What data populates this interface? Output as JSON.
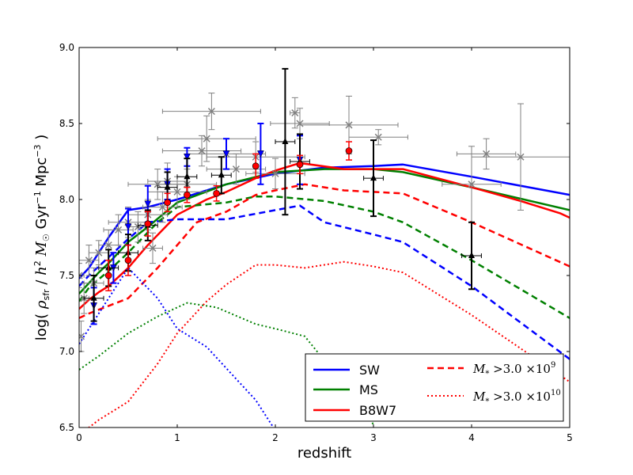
{
  "chart_data": {
    "type": "line",
    "title": "",
    "xlabel": "redshift",
    "ylabel_parts": [
      "log( ",
      "ρ",
      "sfr",
      " / ",
      "h",
      "2",
      " ",
      "M",
      "☉",
      " Gyr",
      "−1",
      " Mpc",
      "−3",
      " )"
    ],
    "xlim": [
      0,
      5
    ],
    "ylim": [
      6.5,
      9.0
    ],
    "xticks": [
      0,
      1,
      2,
      3,
      4,
      5
    ],
    "xtick_labels": [
      "0",
      "1",
      "2",
      "3",
      "4",
      "5"
    ],
    "yticks": [
      6.5,
      7.0,
      7.5,
      8.0,
      8.5,
      9.0
    ],
    "ytick_labels": [
      "6.5",
      "7.0",
      "7.5",
      "8.0",
      "8.5",
      "9.0"
    ],
    "grid": false,
    "legend_position": "lower-right",
    "colors": {
      "SW": "#0000ff",
      "MS": "#008000",
      "B8W7": "#ff0000",
      "obs_gray": "#808080",
      "obs_black": "#000000",
      "obs_blue": "#0000ff",
      "obs_red": "#ff0000"
    },
    "series": [
      {
        "name": "SW",
        "style": "solid",
        "color": "#0000ff",
        "x": [
          0,
          0.1,
          0.2,
          0.3,
          0.5,
          0.7,
          1.0,
          1.5,
          2.0,
          2.5,
          3.0,
          3.3,
          4.0,
          5.0
        ],
        "y": [
          7.48,
          7.55,
          7.65,
          7.75,
          7.93,
          7.95,
          8.0,
          8.1,
          8.17,
          8.21,
          8.22,
          8.23,
          8.15,
          8.03
        ]
      },
      {
        "name": "MS",
        "style": "solid",
        "color": "#008000",
        "x": [
          0,
          0.1,
          0.2,
          0.3,
          0.5,
          0.7,
          1.0,
          1.5,
          2.0,
          2.5,
          3.0,
          3.3,
          4.0,
          5.0
        ],
        "y": [
          7.38,
          7.45,
          7.52,
          7.58,
          7.72,
          7.82,
          7.98,
          8.1,
          8.18,
          8.2,
          8.2,
          8.18,
          8.08,
          7.93
        ]
      },
      {
        "name": "B8W7",
        "style": "solid",
        "color": "#ff0000",
        "x": [
          0,
          0.1,
          0.2,
          0.3,
          0.5,
          0.7,
          1.0,
          1.3,
          1.5,
          1.8,
          2.0,
          2.25,
          2.7,
          3.0,
          3.3,
          4.0,
          4.5,
          4.9,
          5.0
        ],
        "y": [
          7.28,
          7.34,
          7.39,
          7.43,
          7.55,
          7.7,
          7.9,
          8.0,
          8.05,
          8.14,
          8.19,
          8.24,
          8.2,
          8.2,
          8.2,
          8.08,
          7.99,
          7.91,
          7.88
        ]
      },
      {
        "name": "SW M*>3e9",
        "style": "dashed",
        "color": "#0000ff",
        "x": [
          0,
          0.1,
          0.3,
          0.5,
          0.7,
          1.0,
          1.5,
          2.0,
          2.25,
          2.5,
          3.0,
          3.3,
          4.0,
          5.0
        ],
        "y": [
          7.43,
          7.5,
          7.62,
          7.74,
          7.85,
          7.87,
          7.87,
          7.93,
          7.96,
          7.85,
          7.77,
          7.72,
          7.43,
          6.95
        ]
      },
      {
        "name": "MS M*>3e9",
        "style": "dashed",
        "color": "#008000",
        "x": [
          0,
          0.1,
          0.3,
          0.5,
          0.8,
          1.0,
          1.5,
          1.8,
          2.0,
          2.5,
          3.0,
          3.3,
          4.0,
          5.0
        ],
        "y": [
          7.33,
          7.42,
          7.53,
          7.65,
          7.85,
          7.95,
          7.98,
          8.02,
          8.02,
          7.99,
          7.92,
          7.85,
          7.6,
          7.22
        ]
      },
      {
        "name": "B8W7 M*>3e9",
        "style": "dashed",
        "color": "#ff0000",
        "x": [
          0,
          0.1,
          0.3,
          0.5,
          0.8,
          1.0,
          1.2,
          1.5,
          1.8,
          2.0,
          2.3,
          2.7,
          3.0,
          3.3,
          4.0,
          5.0
        ],
        "y": [
          7.22,
          7.25,
          7.3,
          7.35,
          7.55,
          7.7,
          7.85,
          7.92,
          8.03,
          8.06,
          8.1,
          8.06,
          8.05,
          8.04,
          7.85,
          7.56
        ]
      },
      {
        "name": "SW M*>3e10",
        "style": "dotted",
        "color": "#0000ff",
        "x": [
          0,
          0.2,
          0.5,
          0.8,
          1.0,
          1.3,
          1.6,
          1.8,
          2.0
        ],
        "y": [
          7.05,
          7.25,
          7.55,
          7.35,
          7.15,
          7.03,
          6.82,
          6.68,
          6.48
        ]
      },
      {
        "name": "MS M*>3e10",
        "style": "dotted",
        "color": "#008000",
        "x": [
          0,
          0.2,
          0.5,
          0.8,
          1.1,
          1.4,
          1.8,
          2.0,
          2.3,
          2.7,
          3.0
        ],
        "y": [
          6.88,
          6.97,
          7.12,
          7.23,
          7.32,
          7.29,
          7.18,
          7.15,
          7.1,
          6.78,
          6.52
        ]
      },
      {
        "name": "B8W7 M*>3e10",
        "style": "dotted",
        "color": "#ff0000",
        "x": [
          0,
          0.2,
          0.5,
          0.8,
          1.0,
          1.3,
          1.5,
          1.8,
          2.0,
          2.3,
          2.7,
          3.0,
          3.3,
          4.0,
          5.0
        ],
        "y": [
          6.45,
          6.55,
          6.67,
          6.92,
          7.12,
          7.33,
          7.44,
          7.57,
          7.57,
          7.55,
          7.59,
          7.56,
          7.52,
          7.24,
          6.8
        ]
      }
    ],
    "observations": {
      "gray_x": {
        "color": "#808080",
        "points": [
          [
            0.0,
            7.5,
            0.05,
            0.08
          ],
          [
            0.02,
            7.1,
            0.02,
            0.1
          ],
          [
            0.05,
            7.35,
            0.05,
            0.1
          ],
          [
            0.1,
            7.6,
            0.1,
            0.1
          ],
          [
            0.15,
            7.45,
            0.1,
            0.1
          ],
          [
            0.2,
            7.65,
            0.1,
            0.08
          ],
          [
            0.3,
            7.7,
            0.1,
            0.1
          ],
          [
            0.4,
            7.8,
            0.15,
            0.1
          ],
          [
            0.5,
            7.85,
            0.2,
            0.1
          ],
          [
            0.6,
            7.82,
            0.1,
            0.1
          ],
          [
            0.7,
            7.9,
            0.2,
            0.1
          ],
          [
            0.75,
            7.68,
            0.1,
            0.1
          ],
          [
            0.8,
            8.1,
            0.3,
            0.1
          ],
          [
            0.85,
            7.95,
            0.2,
            0.1
          ],
          [
            0.9,
            8.12,
            0.2,
            0.12
          ],
          [
            1.0,
            8.05,
            0.3,
            0.1
          ],
          [
            1.1,
            8.1,
            0.3,
            0.1
          ],
          [
            1.25,
            8.32,
            0.4,
            0.1
          ],
          [
            1.3,
            8.4,
            0.5,
            0.15
          ],
          [
            1.35,
            8.58,
            0.5,
            0.12
          ],
          [
            1.5,
            8.3,
            0.4,
            0.1
          ],
          [
            1.6,
            8.2,
            0.3,
            0.1
          ],
          [
            1.8,
            8.28,
            0.5,
            0.1
          ],
          [
            2.0,
            8.17,
            0.3,
            0.1
          ],
          [
            2.2,
            8.57,
            0.05,
            0.1
          ],
          [
            2.25,
            8.5,
            0.3,
            0.1
          ],
          [
            2.75,
            8.49,
            0.5,
            0.19
          ],
          [
            3.05,
            8.41,
            0.3,
            0.05
          ],
          [
            4.0,
            8.1,
            0.3,
            0.25
          ],
          [
            4.15,
            8.3,
            0.3,
            0.1
          ],
          [
            4.5,
            8.28,
            0.5,
            0.35
          ]
        ]
      },
      "black_triangles": {
        "color": "#000000",
        "points": [
          [
            0.15,
            7.35,
            0.1,
            0.15
          ],
          [
            0.3,
            7.55,
            0.1,
            0.12
          ],
          [
            0.5,
            7.65,
            0.1,
            0.12
          ],
          [
            0.7,
            7.83,
            0.1,
            0.1
          ],
          [
            0.9,
            8.08,
            0.1,
            0.1
          ],
          [
            1.1,
            8.15,
            0.1,
            0.12
          ],
          [
            1.45,
            8.16,
            0.1,
            0.12
          ],
          [
            2.1,
            8.38,
            0.1,
            0.48
          ],
          [
            2.25,
            8.25,
            0.1,
            0.18
          ],
          [
            3.0,
            8.14,
            0.1,
            0.25
          ],
          [
            4.0,
            7.63,
            0.1,
            0.22
          ]
        ]
      },
      "blue_down_triangles": {
        "color": "#0000ff",
        "points": [
          [
            0.15,
            7.3,
            0.02,
            0.12
          ],
          [
            0.35,
            7.55,
            0.02,
            0.1
          ],
          [
            0.5,
            7.82,
            0.02,
            0.12
          ],
          [
            0.7,
            7.97,
            0.02,
            0.12
          ],
          [
            0.9,
            8.1,
            0.02,
            0.1
          ],
          [
            1.1,
            8.28,
            0.02,
            0.06
          ],
          [
            1.5,
            8.3,
            0.02,
            0.1
          ],
          [
            1.85,
            8.3,
            0.02,
            0.2
          ],
          [
            2.25,
            8.26,
            0.02,
            0.16
          ]
        ]
      },
      "red_circles": {
        "color": "#ff0000",
        "points": [
          [
            0.3,
            7.5,
            0.02,
            0.1
          ],
          [
            0.5,
            7.6,
            0.02,
            0.1
          ],
          [
            0.7,
            7.84,
            0.02,
            0.08
          ],
          [
            0.9,
            7.98,
            0.02,
            0.06
          ],
          [
            1.1,
            8.03,
            0.02,
            0.05
          ],
          [
            1.4,
            8.04,
            0.02,
            0.05
          ],
          [
            1.8,
            8.22,
            0.02,
            0.08
          ],
          [
            2.25,
            8.23,
            0.02,
            0.06
          ],
          [
            2.75,
            8.32,
            0.02,
            0.06
          ]
        ]
      }
    },
    "legend": [
      {
        "label": "SW",
        "style": "solid",
        "color": "#0000ff",
        "math": false
      },
      {
        "label": "MS",
        "style": "solid",
        "color": "#008000",
        "math": false
      },
      {
        "label": "B8W7",
        "style": "solid",
        "color": "#ff0000",
        "math": false
      },
      {
        "label_parts": [
          "M",
          "*",
          " >3.0 ×10",
          "9"
        ],
        "style": "dashed",
        "color": "#ff0000",
        "math": true
      },
      {
        "label_parts": [
          "M",
          "*",
          " >3.0 ×10",
          "10"
        ],
        "style": "dotted",
        "color": "#ff0000",
        "math": true
      }
    ]
  }
}
